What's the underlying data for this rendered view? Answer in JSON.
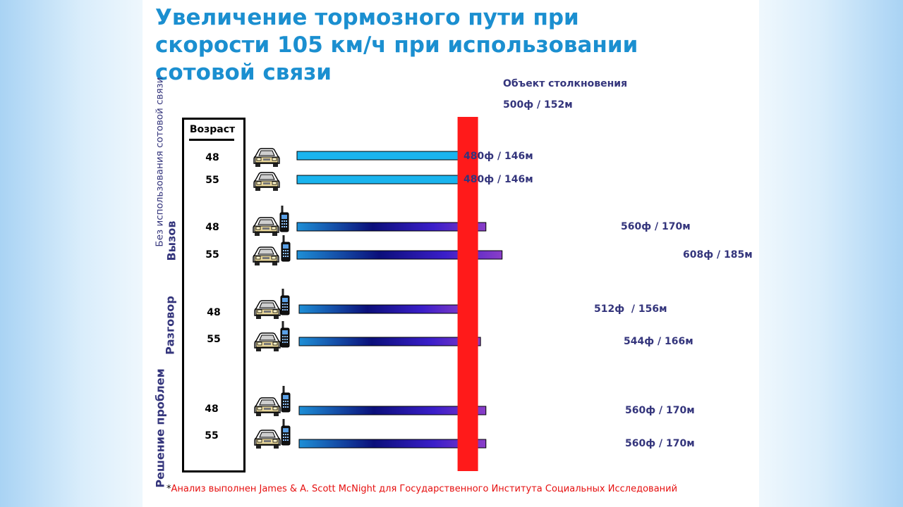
{
  "title": "Увеличение  тормозного пути при\nскорости 105 км/ч при использовании\nсотовой связи",
  "collision": {
    "label": "Объект столкновения",
    "distance_label": "500ф / 152м",
    "distance_ft": 500,
    "color": "#ff1a1a"
  },
  "age_column": {
    "header": "Возраст"
  },
  "groups": [
    {
      "label": "Без использования\nсотовой связи"
    },
    {
      "label": "Вызов"
    },
    {
      "label": "Разговор"
    },
    {
      "label": "Решение\nпроблем"
    }
  ],
  "footnote": {
    "asterisk": "*",
    "text": "Анализ выполнен James & A. Scott McNight для Государственного Института Социальных Исследований"
  },
  "icons": {
    "car": "car-icon",
    "phone": "cell-phone-icon"
  },
  "colors": {
    "title": "#1b8fd0",
    "label": "#34357c",
    "bar_plain": "#1ab4ee",
    "bar_grad_start": "#1e8fd6",
    "bar_grad_mid": "#0b0f7a",
    "bar_grad_end": "#8a3ec8",
    "footnote": "#e60f0f"
  },
  "chart_data": {
    "type": "bar",
    "orientation": "horizontal",
    "title": "Увеличение  тормозного пути при скорости 105 км/ч при использовании сотовой связи",
    "unit": "feet / meters",
    "reference_line": {
      "label": "Объект столкновения",
      "value_ft": 500,
      "value_m": 152,
      "text": "500ф / 152м"
    },
    "rows": [
      {
        "group": "Без использования сотовой связи",
        "age": "48",
        "value_ft": 480,
        "value_m": 146,
        "label": "480ф / 146м",
        "phone": false
      },
      {
        "group": "Без использования сотовой связи",
        "age": "55",
        "value_ft": 480,
        "value_m": 146,
        "label": "480ф / 146м",
        "phone": false
      },
      {
        "group": "Вызов",
        "age": "48",
        "value_ft": 560,
        "value_m": 170,
        "label": "560ф / 170м",
        "phone": true
      },
      {
        "group": "Вызов",
        "age": "55",
        "value_ft": 608,
        "value_m": 185,
        "label": "608ф / 185м",
        "phone": true
      },
      {
        "group": "Разговор",
        "age": "48",
        "value_ft": 512,
        "value_m": 156,
        "label": "512ф  / 156м",
        "phone": true
      },
      {
        "group": "Разговор",
        "age": "55",
        "value_ft": 544,
        "value_m": 166,
        "label": "544ф / 166м",
        "phone": true
      },
      {
        "group": "Решение проблем",
        "age": "48",
        "value_ft": 560,
        "value_m": 170,
        "label": "560ф / 170м",
        "phone": true
      },
      {
        "group": "Решение проблем",
        "age": "55",
        "value_ft": 560,
        "value_m": 170,
        "label": "560ф / 170м",
        "phone": true
      }
    ]
  }
}
